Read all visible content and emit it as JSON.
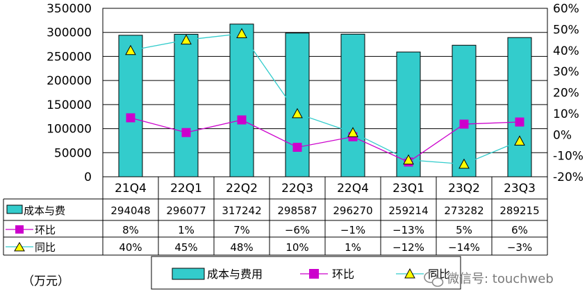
{
  "chart_data": {
    "type": "bar",
    "categories": [
      "21Q4",
      "22Q1",
      "22Q2",
      "22Q3",
      "22Q4",
      "23Q1",
      "23Q2",
      "23Q3"
    ],
    "ylim": [
      0,
      350000
    ],
    "y2lim": [
      -20,
      60
    ],
    "yticks": [
      "0",
      "50000",
      "100000",
      "150000",
      "200000",
      "250000",
      "300000",
      "350000"
    ],
    "y2ticks": [
      "-20%",
      "-10%",
      "0%",
      "10%",
      "20%",
      "30%",
      "40%",
      "50%",
      "60%"
    ],
    "unit_label": "（万元）",
    "series": [
      {
        "name": "成本与费用",
        "table_label": "成本与费",
        "kind": "bar",
        "color": "#33CCCC",
        "values": [
          294048,
          296077,
          317242,
          298587,
          296270,
          259214,
          273282,
          289215
        ],
        "labels": [
          "294048",
          "296077",
          "317242",
          "298587",
          "296270",
          "259214",
          "273282",
          "289215"
        ]
      },
      {
        "name": "环比",
        "table_label": "环比",
        "kind": "line",
        "marker": "square",
        "color": "#CC00CC",
        "values": [
          8,
          1,
          7,
          -6,
          -1,
          -13,
          5,
          6
        ],
        "labels": [
          "8%",
          "1%",
          "7%",
          "−6%",
          "−1%",
          "−13%",
          "5%",
          "6%"
        ]
      },
      {
        "name": "同比",
        "table_label": "同比",
        "kind": "line",
        "marker": "triangle",
        "color": "#33CCCC",
        "marker_fill": "#FFFF00",
        "values": [
          40,
          45,
          48,
          10,
          1,
          -12,
          -14,
          -3
        ],
        "labels": [
          "40%",
          "45%",
          "48%",
          "10%",
          "1%",
          "−12%",
          "−14%",
          "−3%"
        ]
      }
    ]
  },
  "watermark": "微信号: touchweb"
}
